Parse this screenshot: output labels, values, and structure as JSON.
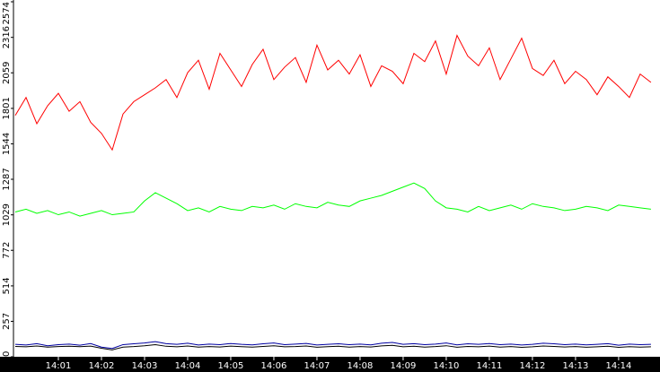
{
  "chart_data": {
    "type": "line",
    "x": [
      0,
      0.25,
      0.5,
      0.75,
      1,
      1.25,
      1.5,
      1.75,
      2,
      2.25,
      2.5,
      2.75,
      3,
      3.25,
      3.5,
      3.75,
      4,
      4.25,
      4.5,
      4.75,
      5,
      5.25,
      5.5,
      5.75,
      6,
      6.25,
      6.5,
      6.75,
      7,
      7.25,
      7.5,
      7.75,
      8,
      8.25,
      8.5,
      8.75,
      9,
      9.25,
      9.5,
      9.75,
      10,
      10.25,
      10.5,
      10.75,
      11,
      11.25,
      11.5,
      11.75,
      12,
      12.25,
      12.5,
      12.75,
      13,
      13.25,
      13.5,
      13.75,
      14,
      14.25,
      14.5,
      14.75
    ],
    "series": [
      {
        "color": "#ff0000",
        "values": [
          1750,
          1880,
          1690,
          1820,
          1910,
          1780,
          1850,
          1700,
          1620,
          1500,
          1760,
          1850,
          1900,
          1950,
          2010,
          1880,
          2060,
          2150,
          1940,
          2200,
          2080,
          1960,
          2120,
          2230,
          2010,
          2100,
          2170,
          1990,
          2260,
          2080,
          2150,
          2050,
          2190,
          1960,
          2110,
          2070,
          1980,
          2200,
          2140,
          2290,
          2050,
          2330,
          2180,
          2110,
          2240,
          2010,
          2160,
          2310,
          2090,
          2040,
          2150,
          1980,
          2070,
          2010,
          1900,
          2030,
          1960,
          1880,
          2050,
          1990
        ]
      },
      {
        "color": "#00ff00",
        "values": [
          1050,
          1070,
          1040,
          1060,
          1030,
          1050,
          1020,
          1040,
          1060,
          1030,
          1040,
          1050,
          1130,
          1190,
          1150,
          1110,
          1060,
          1080,
          1050,
          1090,
          1070,
          1060,
          1090,
          1080,
          1100,
          1070,
          1110,
          1090,
          1080,
          1120,
          1100,
          1090,
          1130,
          1150,
          1170,
          1200,
          1230,
          1260,
          1220,
          1130,
          1080,
          1070,
          1050,
          1090,
          1060,
          1080,
          1100,
          1070,
          1110,
          1090,
          1080,
          1060,
          1070,
          1090,
          1080,
          1060,
          1100,
          1090,
          1080,
          1070
        ]
      },
      {
        "color": "#0000a0",
        "values": [
          90,
          85,
          95,
          80,
          88,
          92,
          84,
          96,
          70,
          60,
          88,
          94,
          100,
          110,
          95,
          90,
          98,
          85,
          92,
          88,
          96,
          90,
          86,
          94,
          100,
          88,
          92,
          97,
          85,
          90,
          94,
          88,
          92,
          86,
          98,
          104,
          90,
          95,
          88,
          92,
          100,
          86,
          94,
          90,
          96,
          88,
          92,
          85,
          90,
          98,
          94,
          88,
          92,
          86,
          90,
          95,
          84,
          92,
          88,
          90
        ]
      },
      {
        "color": "#000000",
        "values": [
          75,
          72,
          78,
          70,
          74,
          76,
          73,
          77,
          62,
          50,
          70,
          74,
          80,
          88,
          76,
          72,
          78,
          70,
          74,
          71,
          77,
          73,
          70,
          75,
          80,
          72,
          74,
          78,
          69,
          73,
          76,
          70,
          74,
          71,
          79,
          83,
          72,
          76,
          70,
          74,
          80,
          69,
          75,
          72,
          77,
          70,
          74,
          68,
          72,
          78,
          75,
          71,
          74,
          69,
          72,
          76,
          68,
          73,
          70,
          72
        ]
      }
    ],
    "xlim": [
      0,
      14.96
    ],
    "xticks": [
      {
        "value": 1,
        "label": "14:01"
      },
      {
        "value": 2,
        "label": "14:02"
      },
      {
        "value": 3,
        "label": "14:03"
      },
      {
        "value": 4,
        "label": "14:04"
      },
      {
        "value": 5,
        "label": "14:05"
      },
      {
        "value": 6,
        "label": "14:06"
      },
      {
        "value": 7,
        "label": "14:07"
      },
      {
        "value": 8,
        "label": "14:08"
      },
      {
        "value": 9,
        "label": "14:09"
      },
      {
        "value": 10,
        "label": "14:10"
      },
      {
        "value": 11,
        "label": "14:11"
      },
      {
        "value": 12,
        "label": "14:12"
      },
      {
        "value": 13,
        "label": "14:13"
      },
      {
        "value": 14,
        "label": "14:14"
      }
    ],
    "ylim": [
      0,
      2574
    ],
    "yticks": [
      0,
      257,
      514,
      772,
      1029,
      1287,
      1544,
      1801,
      2059,
      2316,
      2574
    ]
  }
}
